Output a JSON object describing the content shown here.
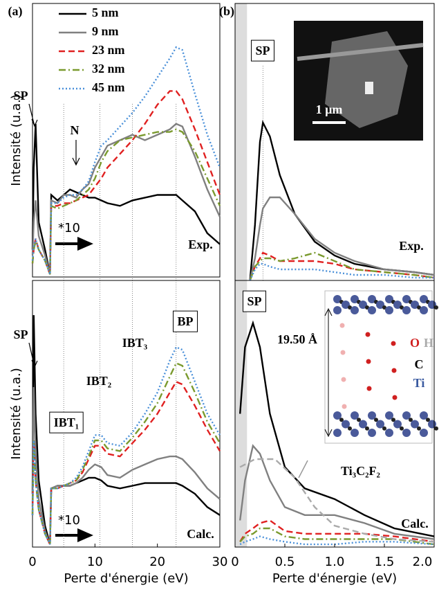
{
  "chart_data": [
    {
      "type": "line",
      "xlim": [
        0,
        30
      ],
      "ylim": [
        0,
        100
      ],
      "vlines": [
        5,
        10.8,
        16,
        23
      ],
      "x": [
        0,
        0.2,
        0.5,
        1,
        2,
        2.8,
        3,
        4,
        5,
        6,
        7,
        8,
        9,
        10,
        11,
        12,
        14,
        16,
        18,
        20,
        22,
        23,
        24,
        26,
        28,
        30
      ],
      "series": [
        {
          "name": "5 nm",
          "color": "#000000",
          "style": "solid",
          "values": [
            10,
            40,
            56,
            20,
            10,
            1,
            30,
            28,
            30,
            32,
            31,
            30,
            29,
            29,
            28,
            27,
            26,
            28,
            29,
            30,
            30,
            30,
            28,
            24,
            16,
            12
          ]
        },
        {
          "name": "9 nm",
          "color": "#808080",
          "style": "solid",
          "values": [
            8,
            20,
            28,
            15,
            8,
            1,
            28,
            27,
            30,
            30,
            29,
            32,
            34,
            40,
            44,
            48,
            50,
            52,
            50,
            52,
            54,
            56,
            55,
            44,
            32,
            22
          ]
        },
        {
          "name": "23 nm",
          "color": "#e02020",
          "style": "dashed",
          "values": [
            5,
            10,
            14,
            10,
            6,
            1,
            26,
            26,
            27,
            27,
            28,
            29,
            30,
            33,
            36,
            40,
            45,
            50,
            56,
            63,
            68,
            68,
            65,
            54,
            42,
            30
          ]
        },
        {
          "name": "32 nm",
          "color": "#7a9a2e",
          "style": "dashdot",
          "values": [
            5,
            10,
            13,
            10,
            6,
            1,
            26,
            25,
            26,
            27,
            28,
            30,
            32,
            36,
            42,
            46,
            50,
            51,
            52,
            53,
            53,
            54,
            53,
            46,
            36,
            26
          ]
        },
        {
          "name": "45 nm",
          "color": "#4a90d9",
          "style": "dotted",
          "values": [
            6,
            11,
            14,
            10,
            6,
            1,
            27,
            27,
            29,
            30,
            30,
            32,
            35,
            42,
            48,
            50,
            55,
            60,
            66,
            73,
            80,
            84,
            83,
            67,
            52,
            40
          ]
        }
      ],
      "y_label": "Intensité (u.a.)",
      "annotations": [
        "(a)",
        "SP",
        "N",
        "*10",
        "Exp."
      ]
    },
    {
      "type": "line",
      "xlim": [
        0,
        2
      ],
      "ylim": [
        0,
        100
      ],
      "shade": [
        0,
        0.12
      ],
      "vlines": [
        0.28
      ],
      "x": [
        0.15,
        0.2,
        0.25,
        0.28,
        0.35,
        0.45,
        0.6,
        0.8,
        1.0,
        1.2,
        1.5,
        1.8,
        2.0
      ],
      "series": [
        {
          "color": "#000000",
          "style": "solid",
          "values": [
            0,
            20,
            50,
            57,
            52,
            38,
            24,
            14,
            9,
            6,
            4,
            3,
            2
          ]
        },
        {
          "color": "#808080",
          "style": "solid",
          "values": [
            0,
            8,
            20,
            26,
            30,
            30,
            24,
            15,
            10,
            7,
            4,
            3,
            2
          ]
        },
        {
          "color": "#e02020",
          "style": "dashed",
          "values": [
            0,
            5,
            8,
            10,
            9,
            7,
            7,
            7,
            6,
            4,
            3,
            2,
            1
          ]
        },
        {
          "color": "#7a9a2e",
          "style": "dashdot",
          "values": [
            0,
            5,
            7,
            8,
            8,
            7,
            8,
            10,
            7,
            4,
            3,
            2,
            1
          ]
        },
        {
          "color": "#4a90d9",
          "style": "dotted",
          "values": [
            0,
            4,
            6,
            6,
            5,
            4,
            4,
            4,
            3,
            2,
            2,
            1,
            1
          ]
        }
      ],
      "annotations": [
        "(b)",
        "SP",
        "Exp.",
        "1 µm"
      ]
    },
    {
      "type": "line",
      "xlim": [
        0,
        30
      ],
      "ylim": [
        0,
        100
      ],
      "xticks": [
        0,
        10,
        20,
        30
      ],
      "x": [
        0,
        0.2,
        0.5,
        1,
        2,
        2.8,
        3,
        4,
        5,
        6,
        7,
        8,
        9,
        10,
        11,
        12,
        14,
        16,
        18,
        20,
        22,
        23,
        24,
        26,
        28,
        30
      ],
      "series": [
        {
          "color": "#000000",
          "style": "solid",
          "values": [
            20,
            87,
            50,
            25,
            8,
            1,
            22,
            23,
            23,
            23,
            24,
            25,
            26,
            26,
            25,
            23,
            22,
            23,
            24,
            24,
            24,
            24,
            23,
            20,
            15,
            12
          ]
        },
        {
          "color": "#808080",
          "style": "solid",
          "values": [
            15,
            60,
            35,
            18,
            6,
            1,
            22,
            23,
            23,
            23,
            24,
            26,
            29,
            31,
            30,
            27,
            26,
            29,
            31,
            33,
            34,
            34,
            33,
            28,
            22,
            18
          ]
        },
        {
          "color": "#e02020",
          "style": "dashed",
          "values": [
            12,
            40,
            25,
            14,
            5,
            1,
            22,
            22,
            23,
            24,
            25,
            28,
            33,
            38,
            38,
            35,
            34,
            39,
            44,
            50,
            58,
            62,
            61,
            53,
            44,
            36
          ]
        },
        {
          "color": "#7a9a2e",
          "style": "dashdot",
          "values": [
            12,
            40,
            25,
            14,
            5,
            1,
            22,
            22,
            23,
            24,
            25,
            29,
            34,
            40,
            40,
            37,
            36,
            41,
            47,
            54,
            64,
            69,
            68,
            58,
            47,
            39
          ]
        },
        {
          "color": "#4a90d9",
          "style": "dotted",
          "values": [
            12,
            40,
            25,
            14,
            5,
            1,
            22,
            22,
            23,
            24,
            26,
            30,
            36,
            42,
            42,
            39,
            38,
            43,
            50,
            58,
            70,
            75,
            74,
            62,
            50,
            42
          ]
        }
      ],
      "x_label": "Perte d'énergie (eV)",
      "y_label": "Intensité (u.a.)",
      "annotations": [
        "SP",
        "IBT₁",
        "IBT₂",
        "IBT₃",
        "BP",
        "*10",
        "Calc."
      ]
    },
    {
      "type": "line",
      "xlim": [
        0,
        2
      ],
      "ylim": [
        0,
        100
      ],
      "shade": [
        0,
        0.12
      ],
      "xticks": [
        0,
        0.5,
        {
          "value": 1,
          "label": "1.0"
        },
        1.5,
        {
          "value": 2,
          "label": "2.0"
        }
      ],
      "x": [
        0.05,
        0.1,
        0.18,
        0.25,
        0.35,
        0.5,
        0.7,
        1.0,
        1.3,
        1.6,
        2.0
      ],
      "series": [
        {
          "color": "#000000",
          "style": "solid",
          "values": [
            50,
            75,
            84,
            75,
            50,
            30,
            22,
            18,
            12,
            7,
            4
          ]
        },
        {
          "color": "#808080",
          "style": "solid",
          "values": [
            10,
            25,
            38,
            35,
            25,
            15,
            12,
            12,
            9,
            5,
            3
          ]
        },
        {
          "color": "#e02020",
          "style": "dashed",
          "values": [
            2,
            5,
            7,
            9,
            10,
            6,
            5,
            5,
            5,
            4,
            2
          ]
        },
        {
          "color": "#7a9a2e",
          "style": "dashdot",
          "values": [
            2,
            4,
            5,
            7,
            7,
            4,
            3,
            3,
            3,
            3,
            1
          ]
        },
        {
          "color": "#4a90d9",
          "style": "dotted",
          "values": [
            1,
            2,
            3,
            4,
            3,
            2,
            1,
            1,
            2,
            2,
            1
          ]
        },
        {
          "name": "Ti₃C₂F₂",
          "color": "#aaaaaa",
          "style": "dashed",
          "x": [
            0.05,
            0.2,
            0.4,
            0.6,
            0.8,
            1.0,
            1.3,
            1.6,
            2.0
          ],
          "values": [
            30,
            33,
            33,
            26,
            15,
            8,
            5,
            3,
            2
          ]
        }
      ],
      "x_label": "Perte d'énergie (eV)",
      "annotations": [
        "SP",
        "19.50 Å",
        "O",
        "H",
        "C",
        "Ti",
        "Calc."
      ]
    }
  ]
}
